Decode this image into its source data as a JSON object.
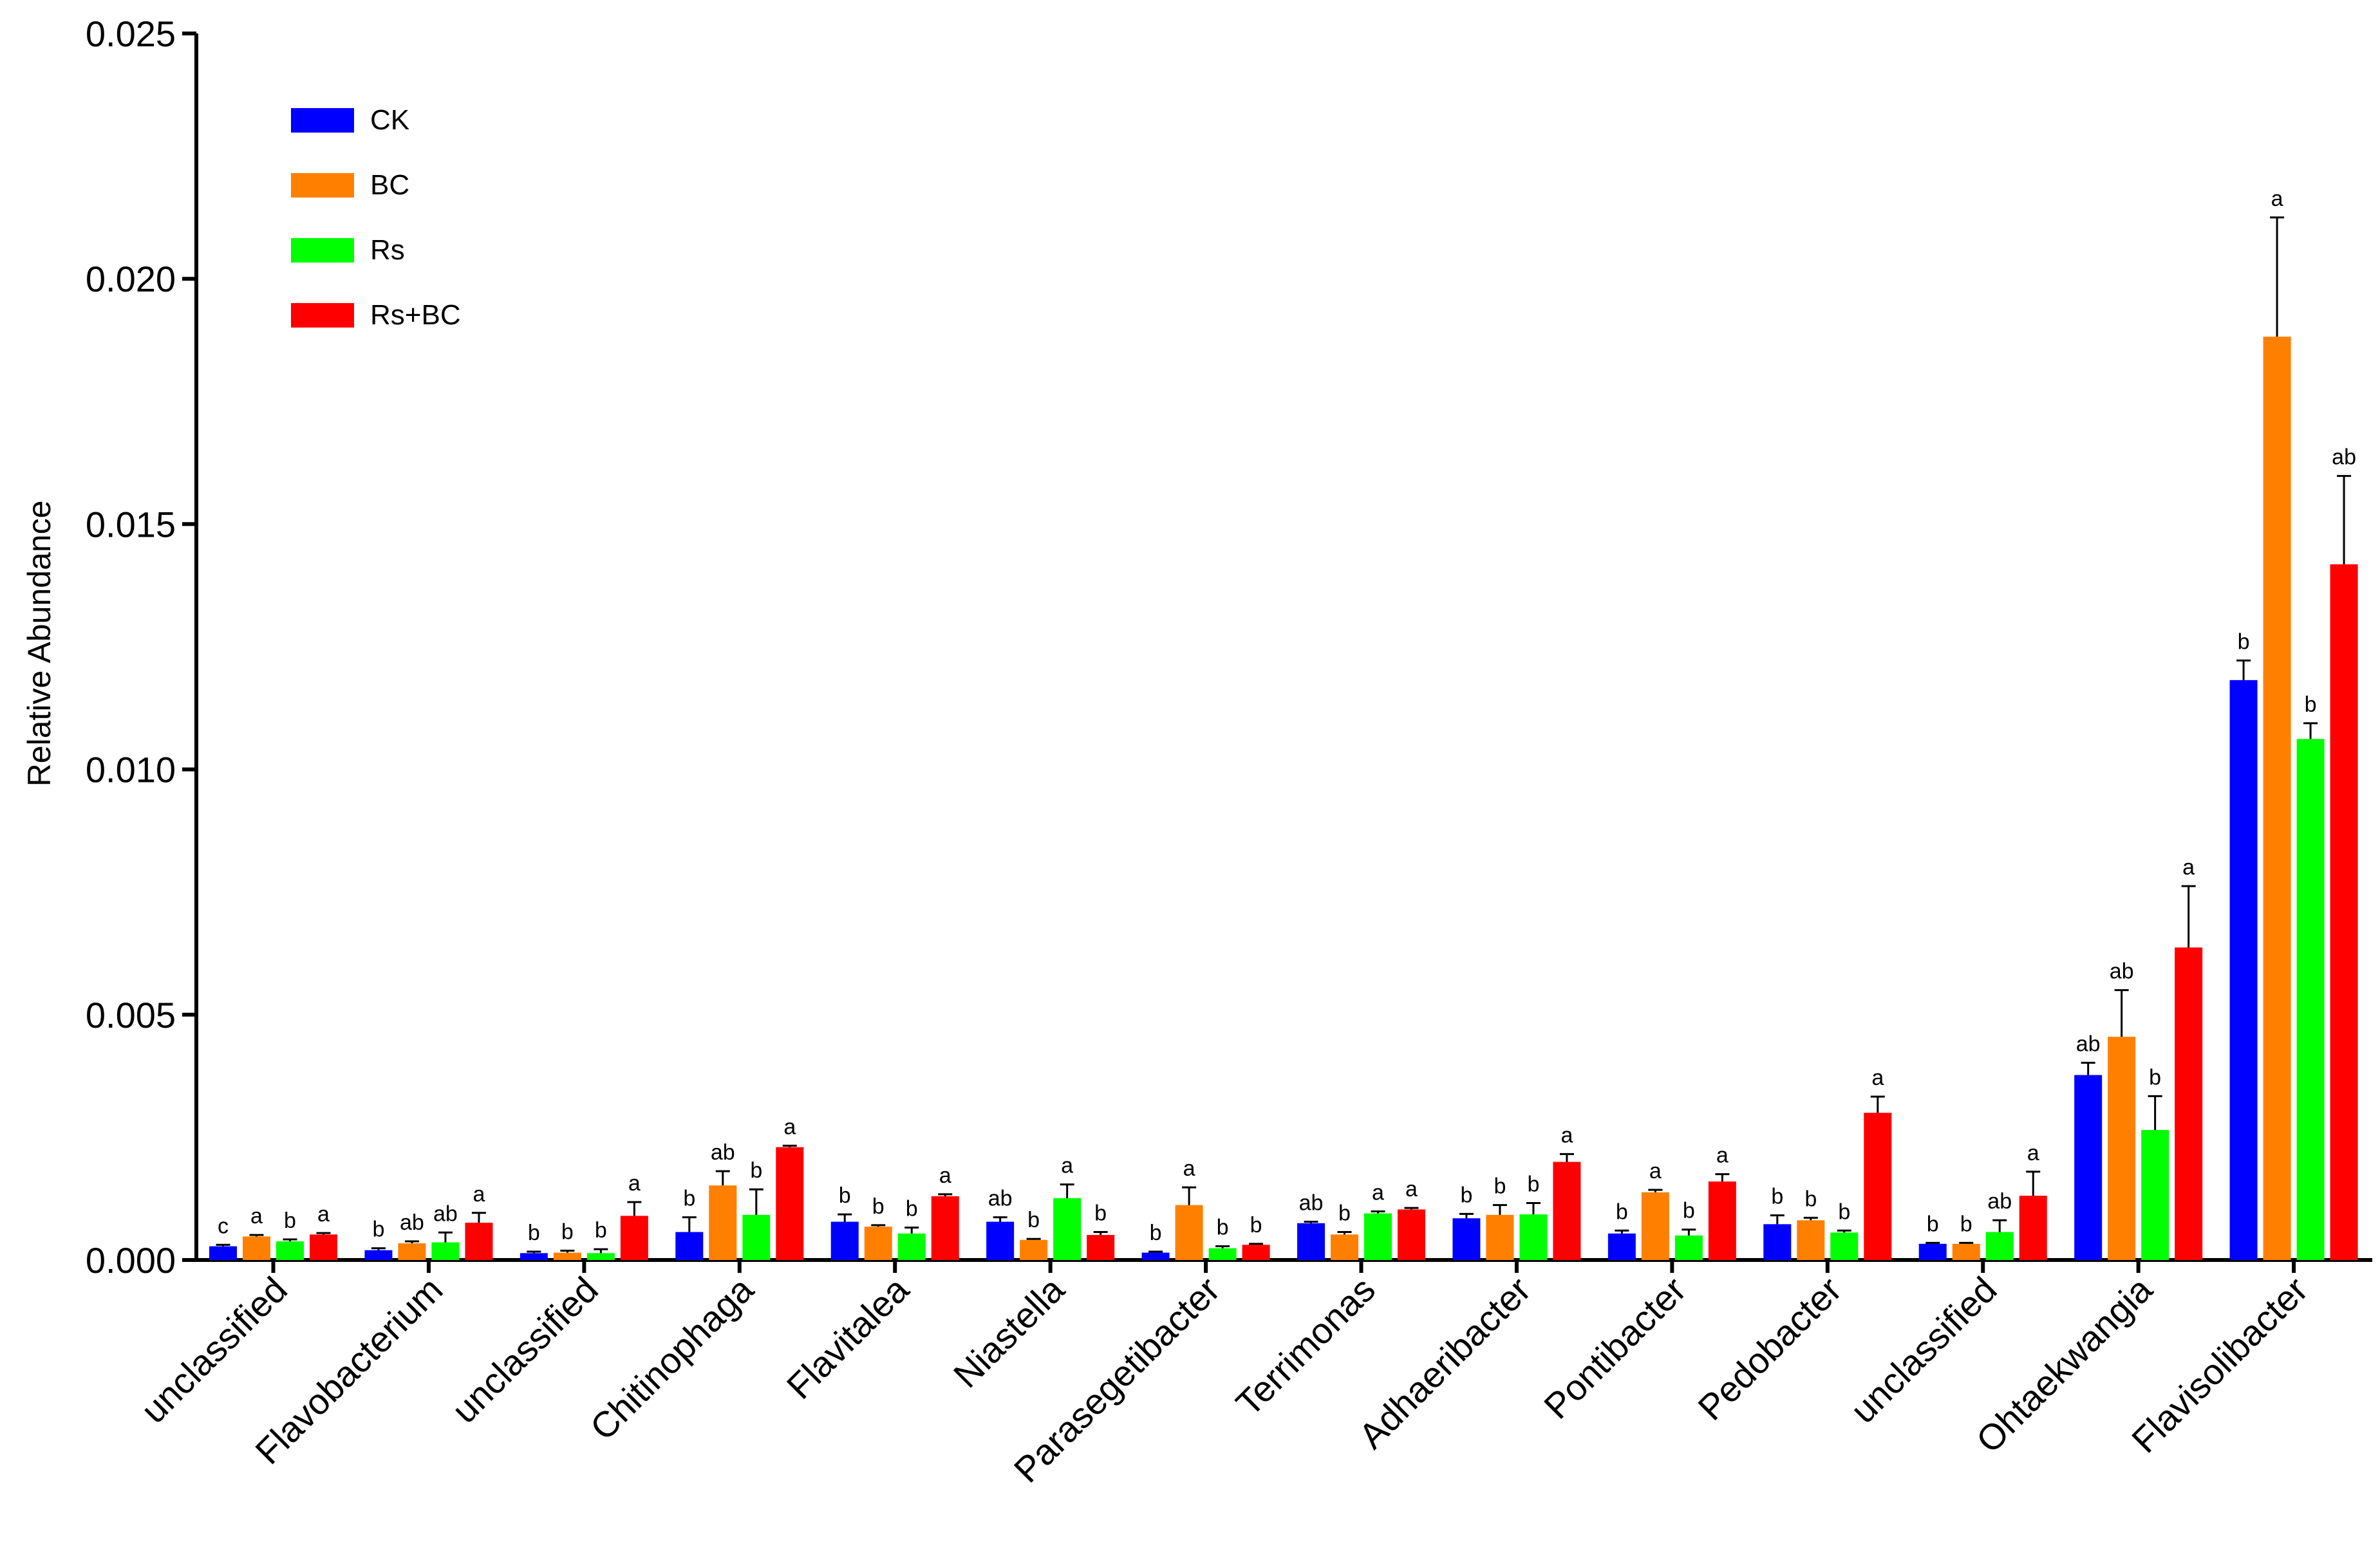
{
  "chart_data": {
    "type": "bar",
    "title": "",
    "xlabel": "",
    "ylabel": "Relative Abundance",
    "ylim": [
      0,
      0.025
    ],
    "yticks": [
      "0.000",
      "0.005",
      "0.010",
      "0.015",
      "0.020",
      "0.025"
    ],
    "ytick_values": [
      0,
      0.005,
      0.01,
      0.015,
      0.02,
      0.025
    ],
    "legend_position": "top-left",
    "grid": false,
    "error_bars": true,
    "categories": [
      "unclassified",
      "Flavobacterium",
      "unclassified",
      "Chitinophaga",
      "Flavitalea",
      "Niastella",
      "Parasegetibacter",
      "Terrimonas",
      "Adhaeribacter",
      "Pontibacter",
      "Pedobacter",
      "unclassified",
      "Ohtaekwangia",
      "Flavisolibacter"
    ],
    "series": [
      {
        "name": "CK",
        "color": "#0000ff",
        "values": [
          0.00028,
          0.0002,
          0.00014,
          0.00057,
          0.00078,
          0.00078,
          0.00015,
          0.00075,
          0.00085,
          0.00054,
          0.00073,
          0.00033,
          0.00377,
          0.01182
        ],
        "errors": [
          3e-05,
          4e-05,
          3e-05,
          0.0003,
          0.00015,
          9e-05,
          2e-05,
          3e-05,
          9e-05,
          6e-05,
          0.00018,
          2e-05,
          0.00025,
          0.0004
        ],
        "labels": [
          "c",
          "b",
          "b",
          "b",
          "b",
          "ab",
          "b",
          "ab",
          "b",
          "b",
          "b",
          "b",
          "ab",
          "b"
        ]
      },
      {
        "name": "BC",
        "color": "#ff8000",
        "values": [
          0.00048,
          0.00034,
          0.00015,
          0.00152,
          0.00068,
          0.00041,
          0.00112,
          0.00052,
          0.00092,
          0.00138,
          0.00081,
          0.00033,
          0.00455,
          0.01882
        ],
        "errors": [
          3e-05,
          4e-05,
          4e-05,
          0.00029,
          3e-05,
          2e-05,
          0.00036,
          5e-05,
          0.0002,
          5e-05,
          5e-05,
          2e-05,
          0.00095,
          0.00243
        ],
        "labels": [
          "a",
          "ab",
          "b",
          "ab",
          "b",
          "b",
          "a",
          "b",
          "b",
          "a",
          "b",
          "b",
          "ab",
          "a"
        ]
      },
      {
        "name": "Rs",
        "color": "#00ff00",
        "values": [
          0.00038,
          0.00036,
          0.00014,
          0.00092,
          0.00054,
          0.00126,
          0.00024,
          0.00095,
          0.00093,
          0.0005,
          0.00056,
          0.00057,
          0.00265,
          0.01062
        ],
        "errors": [
          4e-05,
          0.0002,
          8e-05,
          0.00052,
          0.00012,
          0.00028,
          4e-05,
          4e-05,
          0.00023,
          0.00012,
          4e-05,
          0.00024,
          0.00069,
          0.00032
        ],
        "labels": [
          "b",
          "ab",
          "b",
          "b",
          "b",
          "a",
          "b",
          "a",
          "b",
          "b",
          "b",
          "ab",
          "b",
          "b"
        ]
      },
      {
        "name": "Rs+BC",
        "color": "#ff0000",
        "values": [
          0.00052,
          0.00076,
          0.0009,
          0.0023,
          0.0013,
          0.00051,
          0.00031,
          0.00103,
          0.002,
          0.0016,
          0.003,
          0.00131,
          0.00637,
          0.01418
        ],
        "errors": [
          3e-05,
          0.0002,
          0.00028,
          3e-05,
          4e-05,
          6e-05,
          2e-05,
          3e-05,
          0.00016,
          0.00015,
          0.00033,
          0.00049,
          0.00125,
          0.0018
        ],
        "labels": [
          "a",
          "a",
          "a",
          "a",
          "a",
          "b",
          "b",
          "a",
          "a",
          "a",
          "a",
          "a",
          "a",
          "ab"
        ]
      }
    ]
  }
}
